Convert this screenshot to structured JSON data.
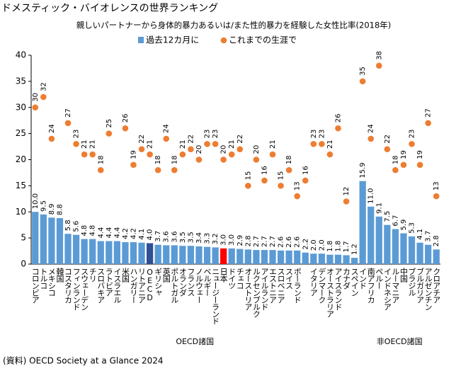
{
  "chart_data": {
    "type": "bar_dot",
    "title": "ドメスティック・バイオレンスの世界ランキング",
    "subtitle": "親しいパートナーから身体的暴力あるいは/また性的暴力を経験した女性比率(2018年)",
    "source": "(資料) OECD Society at a Glance 2024",
    "groups": [
      {
        "name": "OECD諸国",
        "categories": [
          "コロンビア",
          "トルコ",
          "メキシコ",
          "韓国",
          "コスタリカ",
          "フィンランド",
          "スウェーデン",
          "チリ",
          "スロバキア",
          "ラトビア",
          "イスラエル",
          "米国",
          "ハンガリー",
          "リトアニア",
          "OECD",
          "ギリシャ",
          "英国",
          "ポルトガル",
          "オランダ",
          "フランス",
          "ノルウェー",
          "ベルギー",
          "ニュージーランド",
          "日本",
          "ドイツ",
          "チェコ",
          "オーストリア",
          "ルクセンブルク",
          "アイルランド",
          "エストニア",
          "スロベニア",
          "スイス",
          "ポーランド",
          null,
          "イタリア",
          "デンマーク",
          "オーストラリア",
          "アイスランド",
          "カナダ",
          "スペイン"
        ]
      },
      {
        "name": "非OECD諸国",
        "categories": [
          "インド",
          "南アフリカ",
          "ペルー",
          "インドネシア",
          "ルーマニア",
          "中国",
          "ブラジル",
          "ブルガリア",
          "アルゼンチン",
          "クロアチア"
        ]
      }
    ],
    "series": [
      {
        "name": "過去12カ月に",
        "color": "#5b9bd5",
        "colors": [
          "#5b9bd5",
          "#5b9bd5",
          "#5b9bd5",
          "#5b9bd5",
          "#5b9bd5",
          "#5b9bd5",
          "#5b9bd5",
          "#5b9bd5",
          "#5b9bd5",
          "#5b9bd5",
          "#5b9bd5",
          "#5b9bd5",
          "#5b9bd5",
          "#5b9bd5",
          "#2f4f96",
          "#5b9bd5",
          "#5b9bd5",
          "#5b9bd5",
          "#5b9bd5",
          "#5b9bd5",
          "#5b9bd5",
          "#5b9bd5",
          "#5b9bd5",
          "#ff0000",
          "#5b9bd5",
          "#5b9bd5",
          "#5b9bd5",
          "#5b9bd5",
          "#5b9bd5",
          "#5b9bd5",
          "#5b9bd5",
          "#5b9bd5",
          "#5b9bd5",
          "#5b9bd5",
          "#5b9bd5",
          "#5b9bd5",
          "#5b9bd5",
          "#5b9bd5",
          "#5b9bd5",
          "#5b9bd5",
          "#5b9bd5",
          "#5b9bd5",
          "#5b9bd5",
          "#5b9bd5",
          "#5b9bd5",
          "#5b9bd5",
          "#5b9bd5",
          "#5b9bd5",
          "#5b9bd5",
          "#5b9bd5"
        ],
        "values": [
          10,
          9.5,
          8.9,
          8.8,
          5.8,
          5.6,
          4.8,
          4.8,
          4.4,
          4.4,
          4.4,
          4.2,
          4.2,
          4.1,
          4,
          3.7,
          3.6,
          3.6,
          3.5,
          3.5,
          3.4,
          3.3,
          3.2,
          3,
          3,
          2.9,
          2.8,
          2.7,
          2.7,
          2.7,
          2.6,
          2.6,
          2.6,
          2.2,
          2,
          2,
          1.8,
          1.8,
          1.7,
          1.2,
          15.9,
          11,
          9.1,
          7.5,
          6.7,
          5.9,
          5.3,
          4.1,
          3.7,
          2.8
        ],
        "value_labels": [
          "10.0",
          "9.5",
          "8.9",
          "8.8",
          "5.8",
          "5.6",
          "4.8",
          "4.8",
          "4.4",
          "4.4",
          "4.4",
          "4.2",
          "4.2",
          "4.1",
          "4.0",
          "3.7",
          "3.6",
          "3.6",
          "3.5",
          "3.5",
          "3.4",
          "3.3",
          "3.2",
          "3.0",
          "3.0",
          "2.9",
          "2.8",
          "2.7",
          "2.7",
          "2.7",
          "2.6",
          "2.6",
          "2.6",
          "2.2",
          "2.0",
          "2.0",
          "1.8",
          "1.8",
          "1.7",
          "1.2",
          "15.9",
          "11.0",
          "9.1",
          "7.5",
          "6.7",
          "5.9",
          "5.3",
          "4.1",
          "3.7",
          "2.8"
        ]
      },
      {
        "name": "これまでの生涯で",
        "color": "#ed7d31",
        "values": [
          30,
          32,
          24,
          null,
          27,
          23,
          21,
          21,
          18,
          25,
          null,
          26,
          19,
          22,
          21,
          18,
          24,
          18,
          21,
          22,
          20,
          23,
          23,
          20,
          21,
          22,
          15,
          20,
          16,
          21,
          15,
          18,
          13,
          16,
          23,
          23,
          21,
          26,
          12,
          null,
          35,
          24,
          38,
          22,
          18,
          19,
          23,
          19,
          27,
          13
        ]
      }
    ],
    "ylim": [
      0,
      40
    ],
    "yticks": [
      0,
      5,
      10,
      15,
      20,
      25,
      30,
      35,
      40
    ],
    "grid": false
  }
}
